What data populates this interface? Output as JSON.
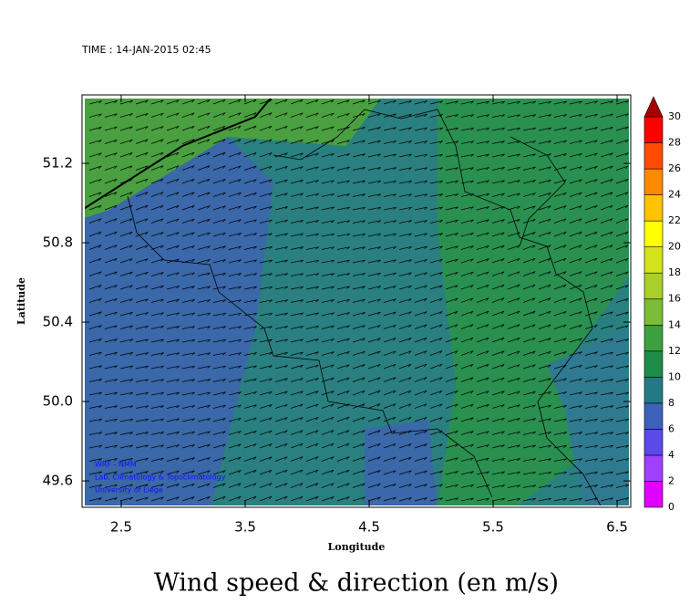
{
  "chart_data": {
    "type": "map",
    "time": "TIME : 14-JAN-2015 02:45",
    "title": "Wind speed & direction (en m/s)",
    "x_label": "Longitude",
    "y_label": "Latitude",
    "xlim": [
      2.184,
      6.61
    ],
    "ylim": [
      49.467,
      51.545
    ],
    "xticks": [
      2.5,
      3.5,
      4.5,
      5.5,
      6.5
    ],
    "yticks": [
      {
        "value": 49.6,
        "label": "49.6"
      },
      {
        "value": 50.0,
        "label": "50.0"
      },
      {
        "value": 50.4,
        "label": "50.4"
      },
      {
        "value": 50.8,
        "label": "50.8"
      },
      {
        "value": 51.2,
        "label": "51.2"
      }
    ],
    "colorbar": {
      "levels": [
        0,
        2,
        4,
        6,
        8,
        10,
        12,
        14,
        16,
        18,
        20,
        22,
        24,
        26,
        28,
        30
      ],
      "colors": [
        "#e000ff",
        "#a040ff",
        "#5a4ae8",
        "#3c62b8",
        "#247a84",
        "#1e8c48",
        "#3ca040",
        "#7cbc38",
        "#a8d028",
        "#d4e41c",
        "#ffff00",
        "#ffc400",
        "#ff8a00",
        "#ff4c00",
        "#ff0000"
      ],
      "extend_color": "#a80000"
    },
    "watermark": [
      "WRF - NMM",
      "Lab. Climatology & Topoclimatology",
      "University of Liege"
    ]
  }
}
